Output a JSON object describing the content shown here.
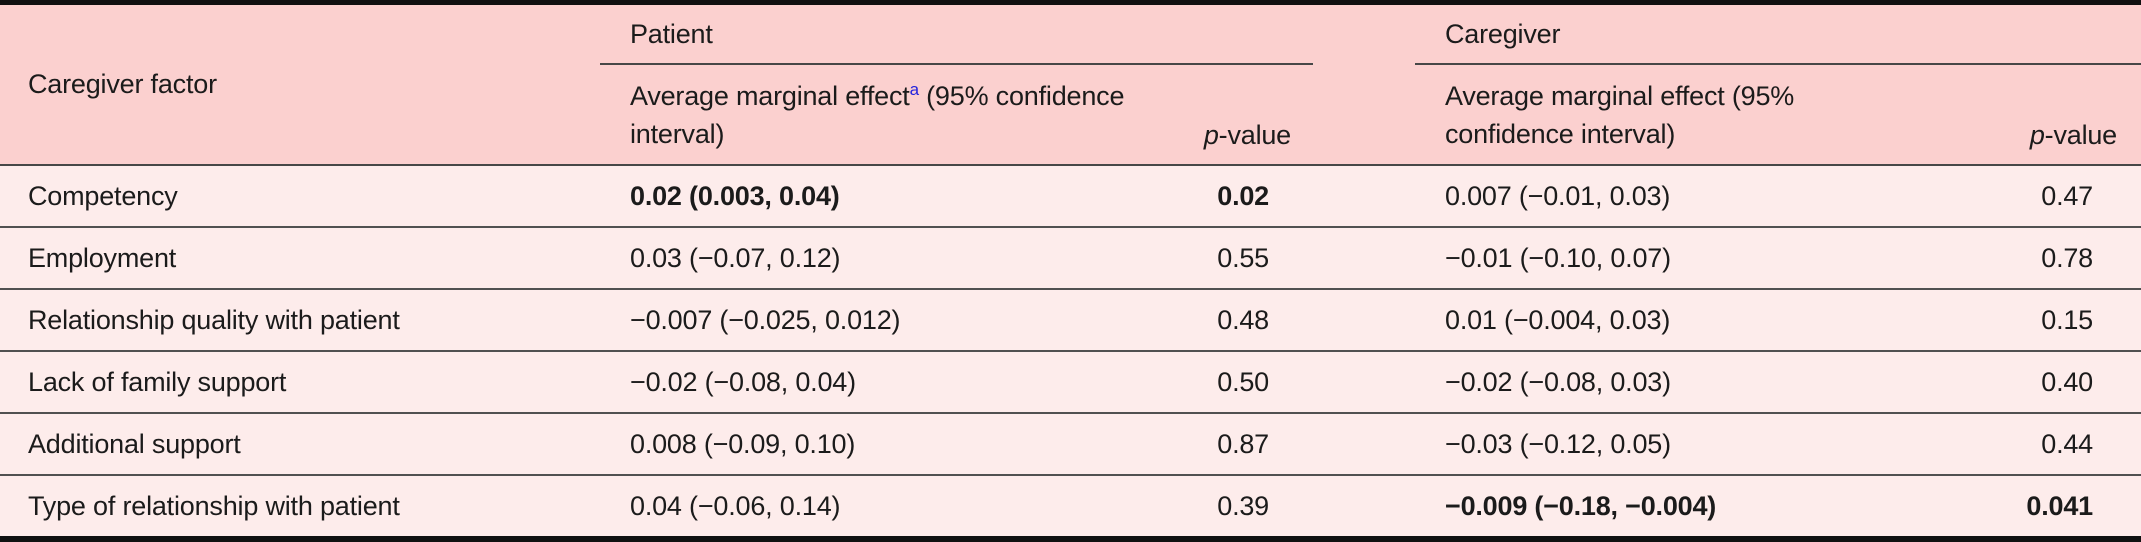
{
  "colors": {
    "header_background": "#fbd0cf",
    "row_background": "#fdeceb",
    "footnote_link_blue": "#2222dd",
    "rule_dark": "#101010",
    "separator_gray": "#505050"
  },
  "table": {
    "corner_header": "Caregiver factor",
    "groups": {
      "patient": {
        "label": "Patient",
        "ame_pre": "Average marginal effect",
        "ame_sup": "a",
        "ame_post": " (95% confidence interval)",
        "p_italic": "p",
        "p_rest": "-value"
      },
      "caregiver": {
        "label": "Caregiver",
        "ame_pre": "Average marginal effect",
        "ame_sup": "",
        "ame_post": " (95% confidence interval)",
        "p_italic": "p",
        "p_rest": "-value"
      }
    },
    "rows": [
      {
        "factor": "Competency",
        "patient_ame": "0.02 (0.003, 0.04)",
        "patient_p": "0.02",
        "patient_bold": true,
        "caregiver_ame": "0.007 (−0.01, 0.03)",
        "caregiver_p": "0.47",
        "caregiver_bold": false
      },
      {
        "factor": "Employment",
        "patient_ame": "0.03 (−0.07, 0.12)",
        "patient_p": "0.55",
        "patient_bold": false,
        "caregiver_ame": "−0.01 (−0.10, 0.07)",
        "caregiver_p": "0.78",
        "caregiver_bold": false
      },
      {
        "factor": "Relationship quality with patient",
        "patient_ame": "−0.007 (−0.025, 0.012)",
        "patient_p": "0.48",
        "patient_bold": false,
        "caregiver_ame": "0.01 (−0.004, 0.03)",
        "caregiver_p": "0.15",
        "caregiver_bold": false
      },
      {
        "factor": "Lack of family support",
        "patient_ame": "−0.02 (−0.08, 0.04)",
        "patient_p": "0.50",
        "patient_bold": false,
        "caregiver_ame": "−0.02 (−0.08, 0.03)",
        "caregiver_p": "0.40",
        "caregiver_bold": false
      },
      {
        "factor": "Additional support",
        "patient_ame": "0.008 (−0.09, 0.10)",
        "patient_p": "0.87",
        "patient_bold": false,
        "caregiver_ame": "−0.03 (−0.12, 0.05)",
        "caregiver_p": "0.44",
        "caregiver_bold": false
      },
      {
        "factor": "Type of relationship with patient",
        "patient_ame": "0.04 (−0.06, 0.14)",
        "patient_p": "0.39",
        "patient_bold": false,
        "caregiver_ame": "−0.009 (−0.18, −0.004)",
        "caregiver_p": "0.041",
        "caregiver_bold": true
      }
    ]
  }
}
